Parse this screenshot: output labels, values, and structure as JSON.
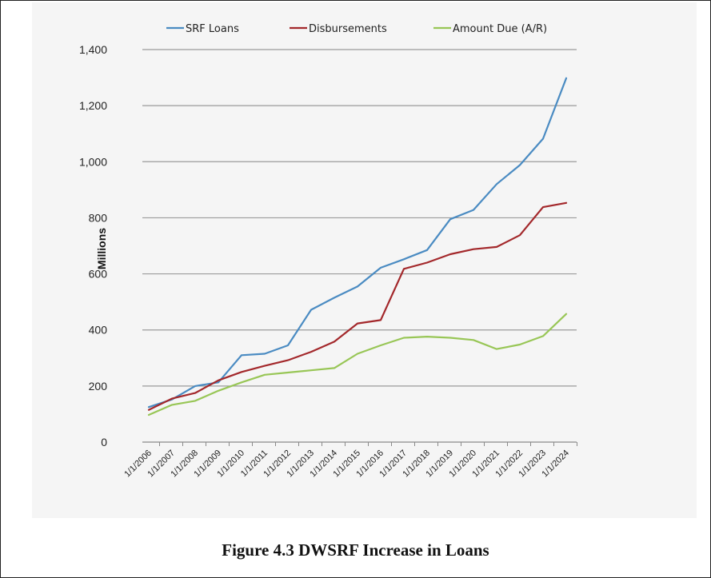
{
  "caption": "Figure 4.3 DWSRF Increase in Loans",
  "chart_data": {
    "type": "line",
    "title": "",
    "xlabel": "",
    "ylabel": "Millions",
    "ylim": [
      0,
      1400
    ],
    "yticks": [
      0,
      200,
      400,
      600,
      800,
      1000,
      1200,
      1400
    ],
    "ytick_labels": [
      "0",
      "200",
      "400",
      "600",
      "800",
      "1,000",
      "1,200",
      "1,400"
    ],
    "grid": true,
    "legend_position": "top",
    "categories": [
      "1/1/2006",
      "1/1/2007",
      "1/1/2008",
      "1/1/2009",
      "1/1/2010",
      "1/1/2011",
      "1/1/2012",
      "1/1/2013",
      "1/1/2014",
      "1/1/2015",
      "1/1/2016",
      "1/1/2017",
      "1/1/2018",
      "1/1/2019",
      "1/1/2020",
      "1/1/2021",
      "1/1/2022",
      "1/1/2023",
      "1/1/2024"
    ],
    "series": [
      {
        "name": "SRF Loans",
        "color": "#4a8bc2",
        "values": [
          125,
          152,
          200,
          213,
          310,
          315,
          345,
          472,
          515,
          555,
          622,
          652,
          685,
          795,
          828,
          920,
          988,
          1082,
          1298
        ]
      },
      {
        "name": "Disbursements",
        "color": "#a3282b",
        "values": [
          115,
          155,
          175,
          220,
          250,
          272,
          292,
          322,
          358,
          423,
          435,
          618,
          640,
          670,
          688,
          696,
          738,
          838,
          853
        ]
      },
      {
        "name": "Amount Due (A/R)",
        "color": "#98c656",
        "values": [
          97,
          133,
          147,
          183,
          213,
          240,
          248,
          256,
          264,
          315,
          345,
          372,
          376,
          372,
          364,
          332,
          348,
          378,
          457
        ]
      }
    ]
  }
}
